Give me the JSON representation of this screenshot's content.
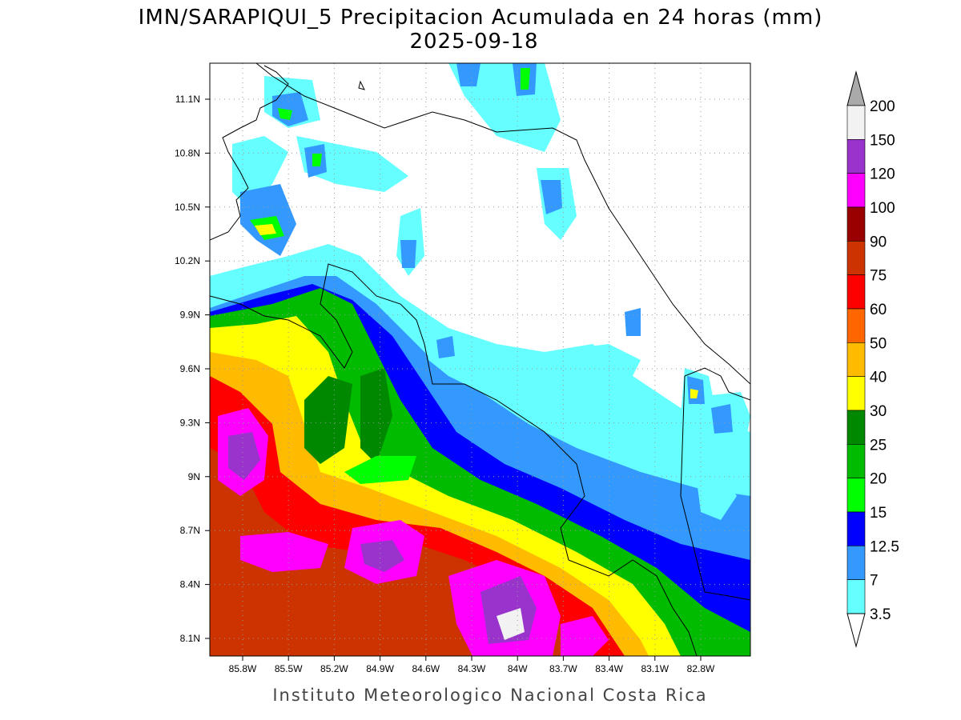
{
  "title": "IMN/SARAPIQUI_5 Precipitacion Acumulada en 24 horas (mm)",
  "date": "2025-09-18",
  "lat_labels": [
    "11.1N",
    "10.8N",
    "10.5N",
    "10.2N",
    "9.9N",
    "9.6N",
    "9.3N",
    "9N",
    "8.7N",
    "8.4N",
    "8.1N"
  ],
  "lon_labels": [
    "85.8W",
    "85.5W",
    "85.2W",
    "84.9W",
    "84.6W",
    "84.3W",
    "84W",
    "83.7W",
    "83.4W",
    "83.1W",
    "82.8W"
  ],
  "colorbar": {
    "labels": [
      "200",
      "150",
      "120",
      "100",
      "90",
      "75",
      "60",
      "50",
      "40",
      "30",
      "25",
      "20",
      "15",
      "12.5",
      "7",
      "3.5"
    ],
    "colors": [
      "#f2f2f2",
      "#9933cc",
      "#ff00ff",
      "#990000",
      "#cc3300",
      "#ff0000",
      "#ff6600",
      "#ffbb00",
      "#ffff00",
      "#008800",
      "#00bb00",
      "#00ff00",
      "#0000ff",
      "#3399ff",
      "#66ffff"
    ],
    "over_color": "#aaaaaa",
    "under_color": "#ffffff"
  },
  "footer": "Instituto Meteorologico Nacional Costa Rica"
}
